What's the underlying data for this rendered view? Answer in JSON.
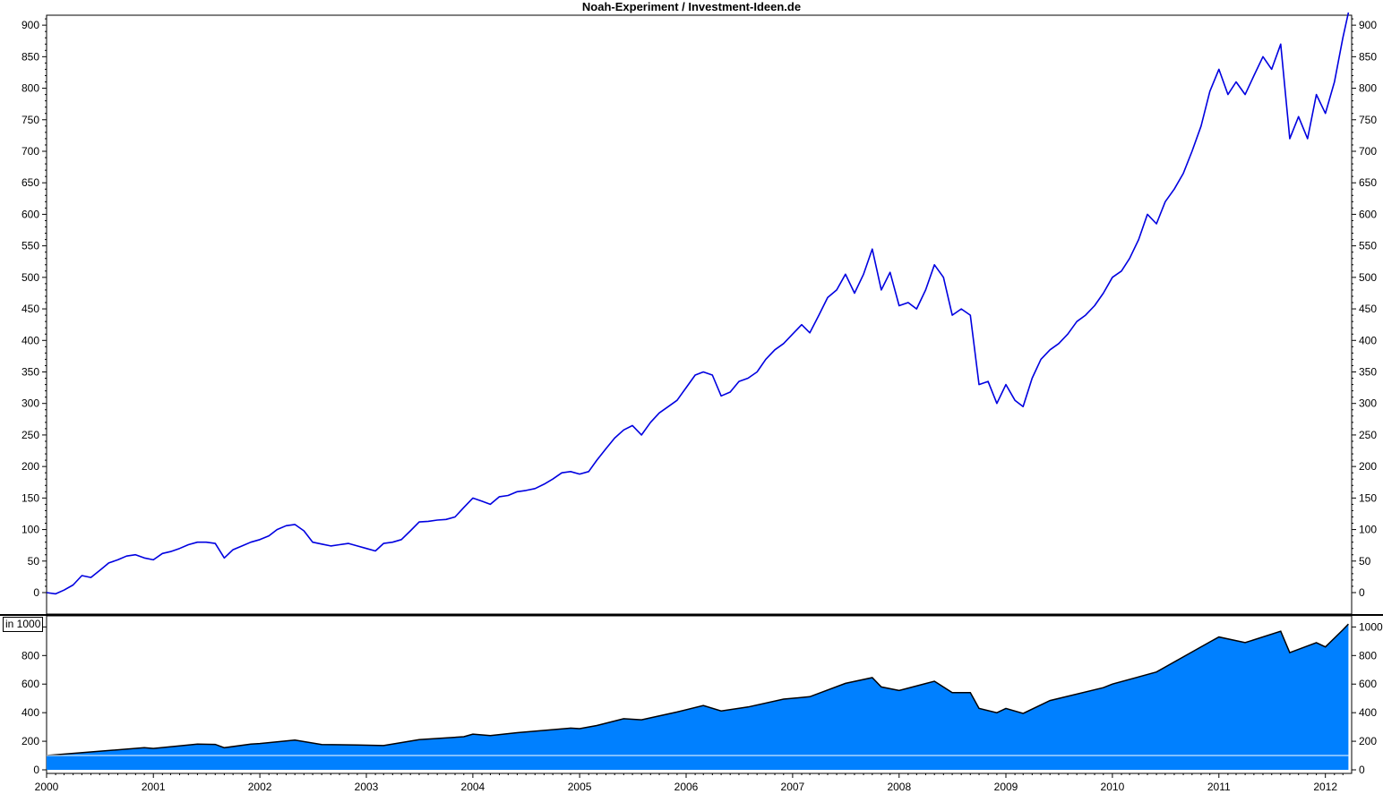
{
  "chart_data": [
    {
      "type": "line",
      "title": "Noah-Experiment / Investment-Ideen.de",
      "x_axis": {
        "type": "date",
        "ticks": [
          "2000",
          "2001",
          "2002",
          "2003",
          "2004",
          "2005",
          "2006",
          "2007",
          "2008",
          "2009",
          "2010",
          "2011",
          "2012"
        ],
        "range": [
          "2000-01-01",
          "2012-03-31"
        ]
      },
      "ylim": [
        0,
        930
      ],
      "yticks": [
        0,
        50,
        100,
        150,
        200,
        250,
        300,
        350,
        400,
        450,
        500,
        550,
        600,
        650,
        700,
        750,
        800,
        850,
        900
      ],
      "series": [
        {
          "color": "#0000e0",
          "points": [
            [
              "2000-01-01",
              0
            ],
            [
              "2000-02-01",
              -2
            ],
            [
              "2000-03-01",
              4
            ],
            [
              "2000-04-01",
              12
            ],
            [
              "2000-05-01",
              27
            ],
            [
              "2000-06-01",
              24
            ],
            [
              "2000-07-01",
              35
            ],
            [
              "2000-08-01",
              47
            ],
            [
              "2000-09-01",
              52
            ],
            [
              "2000-10-01",
              58
            ],
            [
              "2000-11-01",
              60
            ],
            [
              "2000-12-01",
              55
            ],
            [
              "2001-01-01",
              52
            ],
            [
              "2001-02-01",
              62
            ],
            [
              "2001-03-01",
              65
            ],
            [
              "2001-04-01",
              70
            ],
            [
              "2001-05-01",
              76
            ],
            [
              "2001-06-01",
              80
            ],
            [
              "2001-07-01",
              80
            ],
            [
              "2001-08-01",
              78
            ],
            [
              "2001-09-01",
              55
            ],
            [
              "2001-10-01",
              68
            ],
            [
              "2001-11-01",
              74
            ],
            [
              "2001-12-01",
              80
            ],
            [
              "2002-01-01",
              84
            ],
            [
              "2002-02-01",
              90
            ],
            [
              "2002-03-01",
              100
            ],
            [
              "2002-04-01",
              106
            ],
            [
              "2002-05-01",
              108
            ],
            [
              "2002-06-01",
              98
            ],
            [
              "2002-07-01",
              80
            ],
            [
              "2002-08-01",
              77
            ],
            [
              "2002-09-01",
              74
            ],
            [
              "2002-10-01",
              76
            ],
            [
              "2002-11-01",
              78
            ],
            [
              "2002-12-01",
              74
            ],
            [
              "2003-01-01",
              70
            ],
            [
              "2003-02-01",
              66
            ],
            [
              "2003-03-01",
              78
            ],
            [
              "2003-04-01",
              80
            ],
            [
              "2003-05-01",
              84
            ],
            [
              "2003-06-01",
              98
            ],
            [
              "2003-07-01",
              112
            ],
            [
              "2003-08-01",
              113
            ],
            [
              "2003-09-01",
              115
            ],
            [
              "2003-10-01",
              116
            ],
            [
              "2003-11-01",
              120
            ],
            [
              "2003-12-01",
              135
            ],
            [
              "2004-01-01",
              150
            ],
            [
              "2004-02-01",
              145
            ],
            [
              "2004-03-01",
              140
            ],
            [
              "2004-04-01",
              152
            ],
            [
              "2004-05-01",
              154
            ],
            [
              "2004-06-01",
              160
            ],
            [
              "2004-07-01",
              162
            ],
            [
              "2004-08-01",
              165
            ],
            [
              "2004-09-01",
              172
            ],
            [
              "2004-10-01",
              180
            ],
            [
              "2004-11-01",
              190
            ],
            [
              "2004-12-01",
              192
            ],
            [
              "2005-01-01",
              188
            ],
            [
              "2005-02-01",
              192
            ],
            [
              "2005-03-01",
              210
            ],
            [
              "2005-04-01",
              228
            ],
            [
              "2005-05-01",
              245
            ],
            [
              "2005-06-01",
              258
            ],
            [
              "2005-07-01",
              265
            ],
            [
              "2005-08-01",
              250
            ],
            [
              "2005-09-01",
              270
            ],
            [
              "2005-10-01",
              285
            ],
            [
              "2005-11-01",
              295
            ],
            [
              "2005-12-01",
              305
            ],
            [
              "2006-01-01",
              325
            ],
            [
              "2006-02-01",
              345
            ],
            [
              "2006-03-01",
              350
            ],
            [
              "2006-04-01",
              345
            ],
            [
              "2006-05-01",
              312
            ],
            [
              "2006-06-01",
              318
            ],
            [
              "2006-07-01",
              335
            ],
            [
              "2006-08-01",
              340
            ],
            [
              "2006-09-01",
              350
            ],
            [
              "2006-10-01",
              370
            ],
            [
              "2006-11-01",
              385
            ],
            [
              "2006-12-01",
              395
            ],
            [
              "2007-01-01",
              410
            ],
            [
              "2007-02-01",
              425
            ],
            [
              "2007-03-01",
              412
            ],
            [
              "2007-04-01",
              440
            ],
            [
              "2007-05-01",
              468
            ],
            [
              "2007-06-01",
              480
            ],
            [
              "2007-07-01",
              505
            ],
            [
              "2007-08-01",
              475
            ],
            [
              "2007-09-01",
              505
            ],
            [
              "2007-10-01",
              545
            ],
            [
              "2007-11-01",
              480
            ],
            [
              "2007-12-01",
              508
            ],
            [
              "2008-01-01",
              455
            ],
            [
              "2008-02-01",
              460
            ],
            [
              "2008-03-01",
              450
            ],
            [
              "2008-04-01",
              480
            ],
            [
              "2008-05-01",
              520
            ],
            [
              "2008-06-01",
              500
            ],
            [
              "2008-07-01",
              440
            ],
            [
              "2008-08-01",
              450
            ],
            [
              "2008-09-01",
              440
            ],
            [
              "2008-10-01",
              330
            ],
            [
              "2008-11-01",
              335
            ],
            [
              "2008-12-01",
              300
            ],
            [
              "2009-01-01",
              330
            ],
            [
              "2009-02-01",
              305
            ],
            [
              "2009-03-01",
              295
            ],
            [
              "2009-04-01",
              340
            ],
            [
              "2009-05-01",
              370
            ],
            [
              "2009-06-01",
              385
            ],
            [
              "2009-07-01",
              395
            ],
            [
              "2009-08-01",
              410
            ],
            [
              "2009-09-01",
              430
            ],
            [
              "2009-10-01",
              440
            ],
            [
              "2009-11-01",
              455
            ],
            [
              "2009-12-01",
              475
            ],
            [
              "2010-01-01",
              500
            ],
            [
              "2010-02-01",
              510
            ],
            [
              "2010-03-01",
              530
            ],
            [
              "2010-04-01",
              560
            ],
            [
              "2010-05-01",
              600
            ],
            [
              "2010-06-01",
              585
            ],
            [
              "2010-07-01",
              620
            ],
            [
              "2010-08-01",
              640
            ],
            [
              "2010-09-01",
              665
            ],
            [
              "2010-10-01",
              700
            ],
            [
              "2010-11-01",
              740
            ],
            [
              "2010-12-01",
              795
            ],
            [
              "2011-01-01",
              830
            ],
            [
              "2011-02-01",
              790
            ],
            [
              "2011-03-01",
              810
            ],
            [
              "2011-04-01",
              790
            ],
            [
              "2011-05-01",
              820
            ],
            [
              "2011-06-01",
              850
            ],
            [
              "2011-07-01",
              830
            ],
            [
              "2011-08-01",
              870
            ],
            [
              "2011-09-01",
              720
            ],
            [
              "2011-10-01",
              755
            ],
            [
              "2011-11-01",
              720
            ],
            [
              "2011-12-01",
              790
            ],
            [
              "2012-01-01",
              760
            ],
            [
              "2012-02-01",
              810
            ],
            [
              "2012-03-01",
              880
            ],
            [
              "2012-03-20",
              920
            ]
          ]
        }
      ]
    },
    {
      "type": "area",
      "unit_label": "in 1000",
      "x_axis": {
        "type": "date",
        "ticks": [
          "2000",
          "2001",
          "2002",
          "2003",
          "2004",
          "2005",
          "2006",
          "2007",
          "2008",
          "2009",
          "2010",
          "2011",
          "2012"
        ],
        "range": [
          "2000-01-01",
          "2012-03-31"
        ]
      },
      "ylim": [
        0,
        1040
      ],
      "yticks": [
        0,
        200,
        400,
        600,
        800,
        1000
      ],
      "reference_line": 100,
      "series": [
        {
          "fill": "#0080ff",
          "line": "#000000",
          "points": [
            [
              "2000-01-01",
              100
            ],
            [
              "2000-06-01",
              125
            ],
            [
              "2000-12-01",
              155
            ],
            [
              "2001-01-01",
              150
            ],
            [
              "2001-06-01",
              180
            ],
            [
              "2001-08-01",
              178
            ],
            [
              "2001-09-01",
              155
            ],
            [
              "2001-12-01",
              180
            ],
            [
              "2002-01-01",
              184
            ],
            [
              "2002-05-01",
              208
            ],
            [
              "2002-08-01",
              177
            ],
            [
              "2002-12-01",
              174
            ],
            [
              "2003-03-01",
              170
            ],
            [
              "2003-07-01",
              212
            ],
            [
              "2003-12-01",
              232
            ],
            [
              "2004-01-01",
              250
            ],
            [
              "2004-03-01",
              240
            ],
            [
              "2004-06-01",
              260
            ],
            [
              "2004-12-01",
              292
            ],
            [
              "2005-01-01",
              288
            ],
            [
              "2005-03-01",
              310
            ],
            [
              "2005-06-01",
              358
            ],
            [
              "2005-08-01",
              350
            ],
            [
              "2005-12-01",
              405
            ],
            [
              "2006-03-01",
              450
            ],
            [
              "2006-05-01",
              412
            ],
            [
              "2006-08-01",
              440
            ],
            [
              "2006-12-01",
              495
            ],
            [
              "2007-03-01",
              512
            ],
            [
              "2007-07-01",
              605
            ],
            [
              "2007-10-01",
              645
            ],
            [
              "2007-11-01",
              580
            ],
            [
              "2008-01-01",
              555
            ],
            [
              "2008-05-01",
              620
            ],
            [
              "2008-07-01",
              540
            ],
            [
              "2008-09-01",
              540
            ],
            [
              "2008-10-01",
              430
            ],
            [
              "2008-12-01",
              400
            ],
            [
              "2009-01-01",
              430
            ],
            [
              "2009-03-01",
              395
            ],
            [
              "2009-06-01",
              485
            ],
            [
              "2009-12-01",
              575
            ],
            [
              "2010-01-01",
              600
            ],
            [
              "2010-06-01",
              685
            ],
            [
              "2010-12-01",
              895
            ],
            [
              "2011-01-01",
              930
            ],
            [
              "2011-04-01",
              890
            ],
            [
              "2011-08-01",
              970
            ],
            [
              "2011-09-01",
              820
            ],
            [
              "2011-12-01",
              890
            ],
            [
              "2012-01-01",
              860
            ],
            [
              "2012-03-01",
              980
            ],
            [
              "2012-03-20",
              1020
            ]
          ]
        }
      ]
    }
  ]
}
